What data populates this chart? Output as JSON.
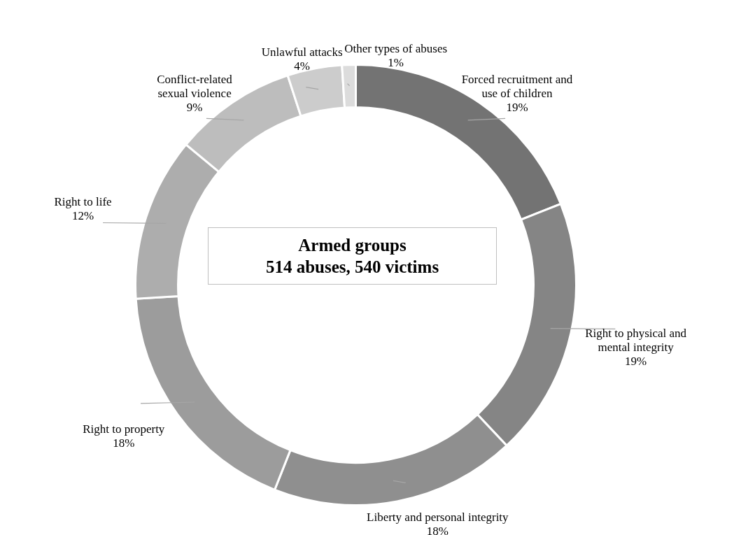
{
  "chart_data": {
    "type": "donut",
    "title": "Armed groups",
    "subtitle": "514 abuses, 540 victims",
    "categories": [
      "Forced recruitment and\nuse of children",
      "Right to physical and\nmental integrity",
      "Liberty and personal integrity",
      "Right to property",
      "Right to life",
      "Conflict-related\nsexual violence",
      "Unlawful attacks",
      "Other types of abuses"
    ],
    "values": [
      19,
      19,
      18,
      18,
      12,
      9,
      4,
      1
    ],
    "value_labels": [
      "19%",
      "19%",
      "18%",
      "18%",
      "12%",
      "9%",
      "4%",
      "1%"
    ],
    "colors": [
      "#737373",
      "#858585",
      "#8f8f8f",
      "#9c9c9c",
      "#adadad",
      "#bdbdbd",
      "#cccccc",
      "#dcdcdc"
    ],
    "legend": false
  }
}
